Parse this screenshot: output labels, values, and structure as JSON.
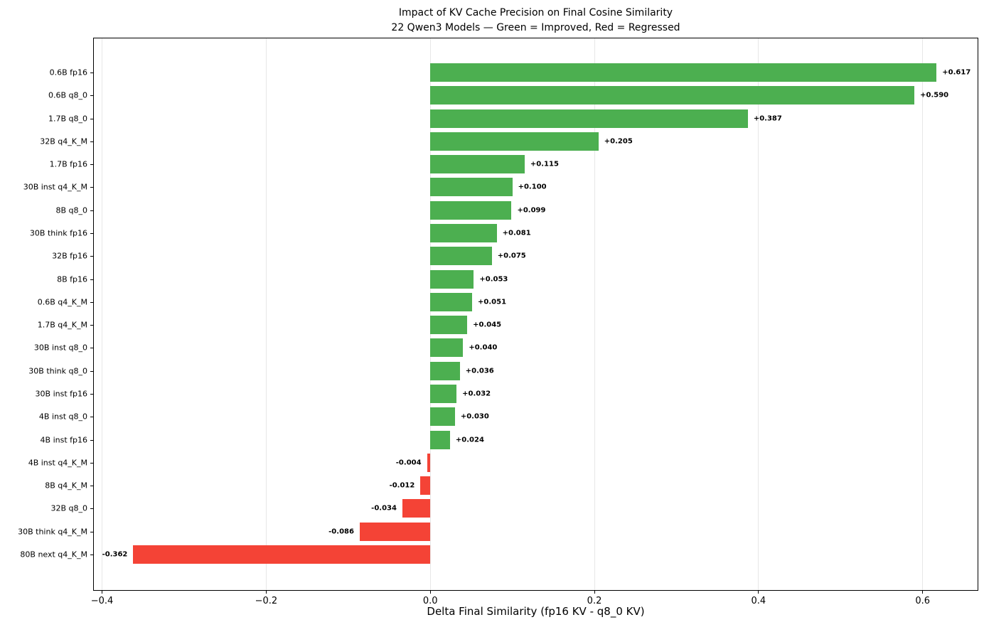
{
  "title": "Impact of KV Cache Precision on Final Cosine Similarity",
  "subtitle": "22 Qwen3 Models — Green = Improved, Red = Regressed",
  "chart_data": {
    "type": "bar",
    "orientation": "horizontal",
    "title": "Impact of KV Cache Precision on Final Cosine Similarity",
    "subtitle": "22 Qwen3 Models — Green = Improved, Red = Regressed",
    "xlabel": "Delta Final Similarity (fp16 KV - q8_0 KV)",
    "ylabel": "",
    "categories": [
      "0.6B fp16",
      "0.6B q8_0",
      "1.7B q8_0",
      "32B q4_K_M",
      "1.7B fp16",
      "30B inst q4_K_M",
      "8B q8_0",
      "30B think fp16",
      "32B fp16",
      "8B fp16",
      "0.6B q4_K_M",
      "1.7B q4_K_M",
      "30B inst q8_0",
      "30B think q8_0",
      "30B inst fp16",
      "4B inst q8_0",
      "4B inst fp16",
      "4B inst q4_K_M",
      "8B q4_K_M",
      "32B q8_0",
      "30B think q4_K_M",
      "80B next q4_K_M"
    ],
    "values": [
      0.617,
      0.59,
      0.387,
      0.205,
      0.115,
      0.1,
      0.099,
      0.081,
      0.075,
      0.053,
      0.051,
      0.045,
      0.04,
      0.036,
      0.032,
      0.03,
      0.024,
      -0.004,
      -0.012,
      -0.034,
      -0.086,
      -0.362
    ],
    "value_labels": [
      "+0.617",
      "+0.590",
      "+0.387",
      "+0.205",
      "+0.115",
      "+0.100",
      "+0.099",
      "+0.081",
      "+0.075",
      "+0.053",
      "+0.051",
      "+0.045",
      "+0.040",
      "+0.036",
      "+0.032",
      "+0.030",
      "+0.024",
      "-0.004",
      "-0.012",
      "-0.034",
      "-0.086",
      "-0.362"
    ],
    "xticks": [
      -0.4,
      -0.2,
      0.0,
      0.2,
      0.4,
      0.6
    ],
    "xtick_labels": [
      "−0.4",
      "−0.2",
      "0.0",
      "0.2",
      "0.4",
      "0.6"
    ],
    "xlim": [
      -0.41,
      0.667
    ],
    "grid": true,
    "legend": "none",
    "colors": {
      "positive": "#4caf50",
      "negative": "#f44336",
      "grid": "#e7e7e7",
      "spine": "#000000",
      "text": "#000000"
    }
  }
}
